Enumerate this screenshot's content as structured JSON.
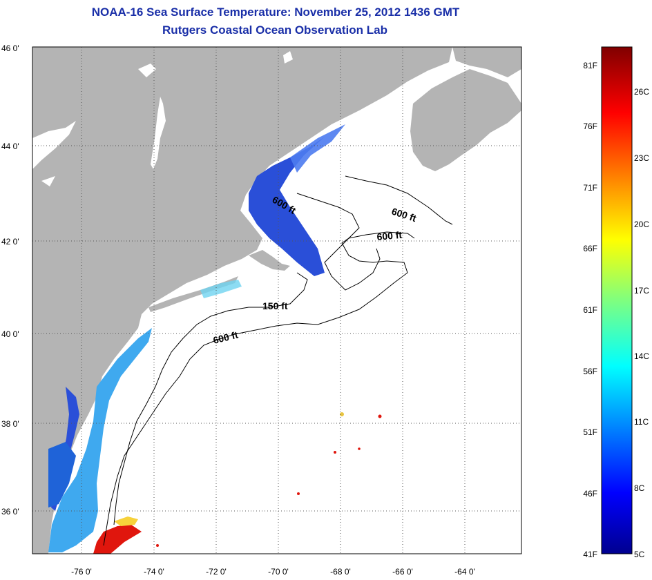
{
  "title": {
    "line1": "NOAA-16 Sea Surface Temperature:  November 25, 2012 1436 GMT",
    "line2": "Rutgers Coastal Ocean Observation Lab"
  },
  "map": {
    "lat_labels": [
      "46 0'",
      "44 0'",
      "42 0'",
      "40 0'",
      "38 0'",
      "36 0'"
    ],
    "lon_labels": [
      "-76 0'",
      "-74 0'",
      "-72 0'",
      "-70 0'",
      "-68 0'",
      "-66 0'",
      "-64 0'"
    ],
    "contour_labels": [
      "600 ft",
      "600 ft",
      "600 ft",
      "150 ft",
      "600 ft"
    ],
    "colors": {
      "land": "#b4b4b4",
      "ocean": "#ffffff",
      "nearshore_cold": "#2a4fd8",
      "shelf_cool": "#3fa9ef",
      "warm_patch": "#e0160d"
    }
  },
  "colorbar": {
    "fahrenheit_labels": [
      "81F",
      "76F",
      "71F",
      "66F",
      "61F",
      "56F",
      "51F",
      "46F",
      "41F"
    ],
    "celsius_labels": [
      "26C",
      "23C",
      "20C",
      "17C",
      "14C",
      "11C",
      "8C",
      "5C"
    ]
  }
}
